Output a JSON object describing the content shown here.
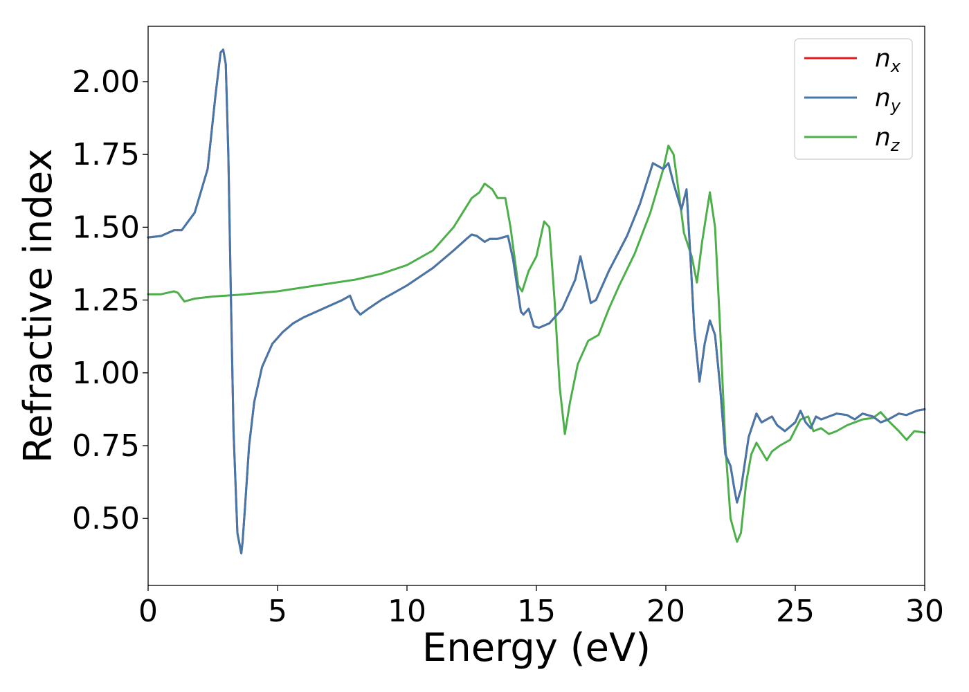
{
  "chart_data": {
    "type": "line",
    "xlabel": "Energy (eV)",
    "ylabel": "Refractive index",
    "xlim": [
      0,
      30
    ],
    "ylim": [
      0.27,
      2.19
    ],
    "xticks": [
      0,
      5,
      10,
      15,
      20,
      25,
      30
    ],
    "xtick_labels": [
      "0",
      "5",
      "10",
      "15",
      "20",
      "25",
      "30"
    ],
    "yticks": [
      0.5,
      0.75,
      1.0,
      1.25,
      1.5,
      1.75,
      2.0
    ],
    "ytick_labels": [
      "0.50",
      "0.75",
      "1.00",
      "1.25",
      "1.50",
      "1.75",
      "2.00"
    ],
    "grid": false,
    "legend_position": "top-right",
    "series": [
      {
        "name": "n_x",
        "legend_base": "n",
        "legend_sub": "x",
        "color": "#e41a1c",
        "x": [
          0,
          0.5,
          1.0,
          1.3,
          1.8,
          2.3,
          2.6,
          2.8,
          2.9,
          3.0,
          3.1,
          3.2,
          3.3,
          3.45,
          3.6,
          3.65,
          3.75,
          3.9,
          4.1,
          4.4,
          4.8,
          5.2,
          5.6,
          6.0,
          6.5,
          7.0,
          7.5,
          7.8,
          8.0,
          8.2,
          8.5,
          9.0,
          10.0,
          11.0,
          11.8,
          12.3,
          12.5,
          12.7,
          13.0,
          13.2,
          13.5,
          13.9,
          14.1,
          14.4,
          14.5,
          14.7,
          14.9,
          15.1,
          15.5,
          16.0,
          16.5,
          16.7,
          16.9,
          17.1,
          17.3,
          17.8,
          18.5,
          19.0,
          19.5,
          19.9,
          20.1,
          20.3,
          20.6,
          20.8,
          20.95,
          21.1,
          21.3,
          21.5,
          21.7,
          21.9,
          22.1,
          22.3,
          22.5,
          22.65,
          22.75,
          22.9,
          23.2,
          23.5,
          23.7,
          23.9,
          24.1,
          24.3,
          24.6,
          25.0,
          25.2,
          25.4,
          25.6,
          25.8,
          26.0,
          26.3,
          26.6,
          27.0,
          27.3,
          27.6,
          28.0,
          28.3,
          28.6,
          29.0,
          29.3,
          29.7,
          30.0
        ],
        "values": [
          1.465,
          1.47,
          1.49,
          1.49,
          1.55,
          1.7,
          1.95,
          2.1,
          2.11,
          2.06,
          1.75,
          1.25,
          0.8,
          0.45,
          0.38,
          0.42,
          0.55,
          0.75,
          0.9,
          1.02,
          1.1,
          1.14,
          1.17,
          1.19,
          1.21,
          1.23,
          1.25,
          1.265,
          1.22,
          1.2,
          1.22,
          1.25,
          1.3,
          1.36,
          1.42,
          1.46,
          1.475,
          1.47,
          1.45,
          1.46,
          1.46,
          1.47,
          1.39,
          1.21,
          1.2,
          1.22,
          1.16,
          1.155,
          1.17,
          1.22,
          1.32,
          1.4,
          1.32,
          1.24,
          1.25,
          1.35,
          1.47,
          1.58,
          1.72,
          1.7,
          1.72,
          1.65,
          1.56,
          1.63,
          1.4,
          1.15,
          0.97,
          1.1,
          1.18,
          1.13,
          0.95,
          0.72,
          0.68,
          0.6,
          0.555,
          0.6,
          0.78,
          0.86,
          0.83,
          0.84,
          0.85,
          0.82,
          0.8,
          0.83,
          0.87,
          0.83,
          0.81,
          0.85,
          0.84,
          0.85,
          0.86,
          0.855,
          0.84,
          0.86,
          0.85,
          0.83,
          0.84,
          0.86,
          0.855,
          0.87,
          0.875
        ]
      },
      {
        "name": "n_y",
        "legend_base": "n",
        "legend_sub": "y",
        "color": "#4477aa",
        "x": [
          0,
          0.5,
          1.0,
          1.3,
          1.8,
          2.3,
          2.6,
          2.8,
          2.9,
          3.0,
          3.1,
          3.2,
          3.3,
          3.45,
          3.6,
          3.65,
          3.75,
          3.9,
          4.1,
          4.4,
          4.8,
          5.2,
          5.6,
          6.0,
          6.5,
          7.0,
          7.5,
          7.8,
          8.0,
          8.2,
          8.5,
          9.0,
          10.0,
          11.0,
          11.8,
          12.3,
          12.5,
          12.7,
          13.0,
          13.2,
          13.5,
          13.9,
          14.1,
          14.4,
          14.5,
          14.7,
          14.9,
          15.1,
          15.5,
          16.0,
          16.5,
          16.7,
          16.9,
          17.1,
          17.3,
          17.8,
          18.5,
          19.0,
          19.5,
          19.9,
          20.1,
          20.3,
          20.6,
          20.8,
          20.95,
          21.1,
          21.3,
          21.5,
          21.7,
          21.9,
          22.1,
          22.3,
          22.5,
          22.65,
          22.75,
          22.9,
          23.2,
          23.5,
          23.7,
          23.9,
          24.1,
          24.3,
          24.6,
          25.0,
          25.2,
          25.4,
          25.6,
          25.8,
          26.0,
          26.3,
          26.6,
          27.0,
          27.3,
          27.6,
          28.0,
          28.3,
          28.6,
          29.0,
          29.3,
          29.7,
          30.0
        ],
        "values": [
          1.465,
          1.47,
          1.49,
          1.49,
          1.55,
          1.7,
          1.95,
          2.1,
          2.11,
          2.06,
          1.75,
          1.25,
          0.8,
          0.45,
          0.38,
          0.42,
          0.55,
          0.75,
          0.9,
          1.02,
          1.1,
          1.14,
          1.17,
          1.19,
          1.21,
          1.23,
          1.25,
          1.265,
          1.22,
          1.2,
          1.22,
          1.25,
          1.3,
          1.36,
          1.42,
          1.46,
          1.475,
          1.47,
          1.45,
          1.46,
          1.46,
          1.47,
          1.39,
          1.21,
          1.2,
          1.22,
          1.16,
          1.155,
          1.17,
          1.22,
          1.32,
          1.4,
          1.32,
          1.24,
          1.25,
          1.35,
          1.47,
          1.58,
          1.72,
          1.7,
          1.72,
          1.65,
          1.56,
          1.63,
          1.4,
          1.15,
          0.97,
          1.1,
          1.18,
          1.13,
          0.95,
          0.72,
          0.68,
          0.6,
          0.555,
          0.6,
          0.78,
          0.86,
          0.83,
          0.84,
          0.85,
          0.82,
          0.8,
          0.83,
          0.87,
          0.83,
          0.81,
          0.85,
          0.84,
          0.85,
          0.86,
          0.855,
          0.84,
          0.86,
          0.85,
          0.83,
          0.84,
          0.86,
          0.855,
          0.87,
          0.875
        ]
      },
      {
        "name": "n_z",
        "legend_base": "n",
        "legend_sub": "z",
        "color": "#4daf4a",
        "x": [
          0,
          0.5,
          1.0,
          1.15,
          1.4,
          1.8,
          2.5,
          3.5,
          5.0,
          6.5,
          8.0,
          9.0,
          10.0,
          11.0,
          11.8,
          12.5,
          12.8,
          13.0,
          13.3,
          13.5,
          13.8,
          14.0,
          14.3,
          14.45,
          14.7,
          15.0,
          15.3,
          15.5,
          15.7,
          15.9,
          16.1,
          16.3,
          16.6,
          17.0,
          17.4,
          17.8,
          18.2,
          18.8,
          19.4,
          19.9,
          20.1,
          20.3,
          20.5,
          20.7,
          21.0,
          21.2,
          21.4,
          21.7,
          21.9,
          22.1,
          22.3,
          22.5,
          22.75,
          22.9,
          23.1,
          23.3,
          23.5,
          23.7,
          23.9,
          24.1,
          24.4,
          24.8,
          25.2,
          25.5,
          25.7,
          26.0,
          26.3,
          26.6,
          27.0,
          27.3,
          27.6,
          28.0,
          28.3,
          28.6,
          29.0,
          29.3,
          29.6,
          30.0
        ],
        "values": [
          1.27,
          1.27,
          1.28,
          1.275,
          1.245,
          1.255,
          1.262,
          1.268,
          1.28,
          1.3,
          1.32,
          1.34,
          1.37,
          1.42,
          1.5,
          1.6,
          1.62,
          1.65,
          1.63,
          1.6,
          1.6,
          1.5,
          1.3,
          1.28,
          1.35,
          1.4,
          1.52,
          1.5,
          1.25,
          0.95,
          0.79,
          0.9,
          1.03,
          1.11,
          1.13,
          1.22,
          1.3,
          1.41,
          1.55,
          1.7,
          1.78,
          1.75,
          1.62,
          1.48,
          1.4,
          1.31,
          1.45,
          1.62,
          1.5,
          1.15,
          0.75,
          0.5,
          0.42,
          0.45,
          0.62,
          0.72,
          0.76,
          0.73,
          0.7,
          0.73,
          0.75,
          0.77,
          0.84,
          0.85,
          0.8,
          0.81,
          0.79,
          0.8,
          0.82,
          0.83,
          0.84,
          0.845,
          0.865,
          0.835,
          0.8,
          0.77,
          0.8,
          0.795
        ]
      }
    ]
  }
}
